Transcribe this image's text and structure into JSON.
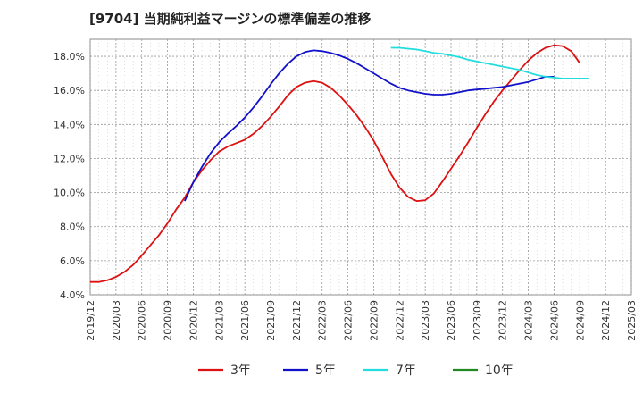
{
  "chart_data": {
    "type": "line",
    "title": "[9704]  当期純利益マージンの標準偏差の推移",
    "xlabel": "",
    "ylabel": "",
    "ylim": [
      4.0,
      19.0
    ],
    "xlim": [
      "2019/12",
      "2025/03"
    ],
    "y_ticks": [
      "4.0%",
      "6.0%",
      "8.0%",
      "10.0%",
      "12.0%",
      "14.0%",
      "16.0%",
      "18.0%"
    ],
    "y_tick_values": [
      4,
      6,
      8,
      10,
      12,
      14,
      16,
      18
    ],
    "x_ticks": [
      "2019/12",
      "2020/03",
      "2020/06",
      "2020/09",
      "2020/12",
      "2021/03",
      "2021/06",
      "2021/09",
      "2021/12",
      "2022/03",
      "2022/06",
      "2022/09",
      "2022/12",
      "2023/03",
      "2023/06",
      "2023/09",
      "2023/12",
      "2024/03",
      "2024/06",
      "2024/09",
      "2024/12",
      "2025/03"
    ],
    "grid": true,
    "legend_position": "bottom",
    "series": [
      {
        "name": "3年",
        "color": "#dd1111",
        "x": [
          "2019/12",
          "2020/01",
          "2020/02",
          "2020/03",
          "2020/04",
          "2020/05",
          "2020/06",
          "2020/07",
          "2020/08",
          "2020/09",
          "2020/10",
          "2020/11",
          "2020/12",
          "2021/01",
          "2021/02",
          "2021/03",
          "2021/04",
          "2021/05",
          "2021/06",
          "2021/07",
          "2021/08",
          "2021/09",
          "2021/10",
          "2021/11",
          "2021/12",
          "2022/01",
          "2022/02",
          "2022/03",
          "2022/04",
          "2022/05",
          "2022/06",
          "2022/07",
          "2022/08",
          "2022/09",
          "2022/10",
          "2022/11",
          "2022/12",
          "2023/01",
          "2023/02",
          "2023/03",
          "2023/04",
          "2023/05",
          "2023/06",
          "2023/07",
          "2023/08",
          "2023/09",
          "2023/10",
          "2023/11",
          "2023/12",
          "2024/01",
          "2024/02",
          "2024/03",
          "2024/04",
          "2024/05",
          "2024/06",
          "2024/07",
          "2024/08",
          "2024/09",
          "2024/10",
          "2024/11",
          "2024/12"
        ],
        "values": [
          4.75,
          4.75,
          4.85,
          5.05,
          5.35,
          5.75,
          6.3,
          6.9,
          7.5,
          8.2,
          9.0,
          9.7,
          10.6,
          11.3,
          11.9,
          12.4,
          12.7,
          12.9,
          13.1,
          13.45,
          13.9,
          14.45,
          15.05,
          15.7,
          16.2,
          16.45,
          16.55,
          16.45,
          16.15,
          15.7,
          15.15,
          14.55,
          13.85,
          13.05,
          12.1,
          11.1,
          10.3,
          9.75,
          9.5,
          9.55,
          9.95,
          10.65,
          11.4,
          12.15,
          12.95,
          13.8,
          14.6,
          15.35,
          16.0,
          16.6,
          17.2,
          17.75,
          18.2,
          18.5,
          18.65,
          18.6,
          18.3,
          17.6,
          null,
          null,
          null
        ],
        "x_offset_note": ""
      },
      {
        "name": "5年",
        "color": "#1111cc",
        "x": [
          "2020/11",
          "2020/12",
          "2021/01",
          "2021/02",
          "2021/03",
          "2021/04",
          "2021/05",
          "2021/06",
          "2021/07",
          "2021/08",
          "2021/09",
          "2021/10",
          "2021/11",
          "2021/12",
          "2022/01",
          "2022/02",
          "2022/03",
          "2022/04",
          "2022/05",
          "2022/06",
          "2022/07",
          "2022/08",
          "2022/09",
          "2022/10",
          "2022/11",
          "2022/12",
          "2023/01",
          "2023/02",
          "2023/03",
          "2023/04",
          "2023/05",
          "2023/06",
          "2023/07",
          "2023/08",
          "2023/09",
          "2023/10",
          "2023/11",
          "2023/12",
          "2024/01",
          "2024/02",
          "2024/03",
          "2024/04",
          "2024/05",
          "2024/06",
          "2024/07",
          "2024/08",
          "2024/09",
          "2024/10",
          "2024/11",
          "2024/12"
        ],
        "values": [
          9.5,
          10.6,
          11.5,
          12.3,
          12.95,
          13.45,
          13.9,
          14.4,
          15.0,
          15.65,
          16.35,
          17.0,
          17.55,
          18.0,
          18.25,
          18.35,
          18.3,
          18.2,
          18.05,
          17.85,
          17.6,
          17.3,
          17.0,
          16.7,
          16.4,
          16.15,
          16.0,
          15.9,
          15.8,
          15.75,
          15.75,
          15.8,
          15.9,
          16.0,
          16.05,
          16.1,
          16.15,
          16.2,
          16.3,
          16.4,
          16.5,
          16.65,
          16.8,
          16.8,
          null,
          null,
          null,
          null,
          null,
          null
        ]
      },
      {
        "name": "7年",
        "color": "#22dddd",
        "x": [
          "2022/11",
          "2022/12",
          "2023/01",
          "2023/02",
          "2023/03",
          "2023/04",
          "2023/05",
          "2023/06",
          "2023/07",
          "2023/08",
          "2023/09",
          "2023/10",
          "2023/11",
          "2023/12",
          "2024/01",
          "2024/02",
          "2024/03",
          "2024/04",
          "2024/05",
          "2024/06",
          "2024/07",
          "2024/08",
          "2024/09",
          "2024/10",
          "2024/11",
          "2024/12"
        ],
        "values": [
          18.5,
          18.5,
          18.45,
          18.4,
          18.3,
          18.2,
          18.15,
          18.05,
          17.95,
          17.8,
          17.7,
          17.6,
          17.5,
          17.4,
          17.3,
          17.2,
          17.05,
          16.9,
          16.8,
          16.75,
          16.7,
          16.7,
          16.7,
          16.7,
          null,
          null
        ]
      },
      {
        "name": "10年",
        "color": "#228822",
        "x": [],
        "values": []
      }
    ]
  }
}
